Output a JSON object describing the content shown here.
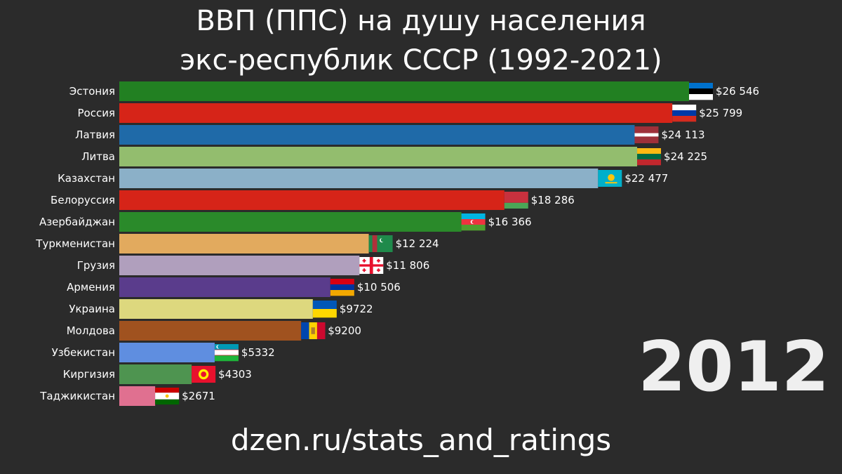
{
  "header": {
    "title_line_1": "ВВП (ППС) на душу населения",
    "title_line_2": "экс-республик СССР (1992-2021)"
  },
  "year": "2012",
  "footer": {
    "url": "dzen.ru/stats_and_ratings"
  },
  "chart_data": {
    "type": "bar",
    "orientation": "horizontal",
    "title": "ВВП (ППС) на душу населения экс-республик СССР (1992-2021)",
    "year": "2012",
    "categories": [
      "Эстония",
      "Россия",
      "Латвия",
      "Литва",
      "Казахстан",
      "Белоруссия",
      "Азербайджан",
      "Туркменистан",
      "Грузия",
      "Армения",
      "Украина",
      "Молдова",
      "Узбекистан",
      "Киргизия",
      "Таджикистан"
    ],
    "values": [
      26546,
      25799,
      24113,
      24225,
      22477,
      18286,
      16366,
      12224,
      11806,
      10506,
      9722,
      9200,
      5332,
      4303,
      2671
    ],
    "value_labels": [
      "$26 546",
      "$25 799",
      "$24 113",
      "$24 225",
      "$22 477",
      "$18 286",
      "$16 366",
      "$12 224",
      "$11 806",
      "$10 506",
      "$9722",
      "$9200",
      "$5332",
      "$4303",
      "$2671"
    ],
    "colors": [
      "#228022",
      "#d62418",
      "#1f6aa8",
      "#93bd6e",
      "#8bb0c8",
      "#d62418",
      "#2a8a2a",
      "#e2aa5e",
      "#b09fbd",
      "#5a3c8c",
      "#ddd87e",
      "#a0521f",
      "#5f8ee0",
      "#4e9450",
      "#e07090"
    ],
    "flags": [
      "estonia-flag",
      "russia-flag",
      "latvia-flag",
      "lithuania-flag",
      "kazakhstan-flag",
      "belarus-flag",
      "azerbaijan-flag",
      "turkmenistan-flag",
      "georgia-flag",
      "armenia-flag",
      "ukraine-flag",
      "moldova-flag",
      "uzbekistan-flag",
      "kyrgyzstan-flag",
      "tajikistan-flag"
    ],
    "xlim": [
      0,
      26546
    ],
    "grid": false,
    "legend": "none"
  }
}
